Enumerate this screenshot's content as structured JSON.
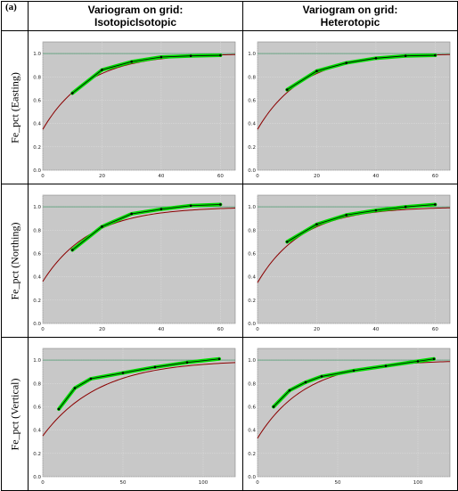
{
  "panel_label": "(a)",
  "headers": {
    "col1_line1": "Variogram on grid:",
    "col1_line2": "IsotopicIsotopic",
    "col2_line1": "Variogram on grid:",
    "col2_line2": "Heterotopic"
  },
  "rows": [
    {
      "label": "Fe_pct (Easting)"
    },
    {
      "label": "Fe_pct (Northing)"
    },
    {
      "label": "Fe_pct (Vertical)"
    }
  ],
  "colors": {
    "plot_background": "#c8c8c8",
    "model_line": "#8b0000",
    "experimental_band": "#00dd00",
    "experimental_line": "#000000",
    "sill_line": "#2e8b57"
  },
  "chart_data": [
    {
      "type": "line",
      "row": "Fe_pct (Easting)",
      "column": "IsotopicIsotopic",
      "xlim": [
        0,
        65
      ],
      "ylim": [
        0,
        1.1
      ],
      "xticks": [
        0,
        20,
        40,
        60
      ],
      "yticks": [
        0.0,
        0.2,
        0.4,
        0.6,
        0.8,
        1.0
      ],
      "sill": 1.0,
      "model": {
        "nugget": 0.35,
        "range_param": 15
      },
      "series": [
        {
          "x": [
            10,
            20,
            30,
            40,
            50,
            60
          ],
          "y": [
            0.66,
            0.86,
            0.93,
            0.97,
            0.98,
            0.985
          ]
        }
      ]
    },
    {
      "type": "line",
      "row": "Fe_pct (Easting)",
      "column": "Heterotopic",
      "xlim": [
        0,
        65
      ],
      "ylim": [
        0,
        1.1
      ],
      "xticks": [
        0,
        20,
        40,
        60
      ],
      "yticks": [
        0.0,
        0.2,
        0.4,
        0.6,
        0.8,
        1.0
      ],
      "sill": 1.0,
      "model": {
        "nugget": 0.35,
        "range_param": 15
      },
      "series": [
        {
          "x": [
            10,
            20,
            30,
            40,
            50,
            60
          ],
          "y": [
            0.69,
            0.85,
            0.92,
            0.96,
            0.98,
            0.985
          ]
        }
      ]
    },
    {
      "type": "line",
      "row": "Fe_pct (Northing)",
      "column": "IsotopicIsotopic",
      "xlim": [
        0,
        65
      ],
      "ylim": [
        0,
        1.1
      ],
      "xticks": [
        0,
        20,
        40,
        60
      ],
      "yticks": [
        0.0,
        0.2,
        0.4,
        0.6,
        0.8,
        1.0
      ],
      "sill": 1.0,
      "model": {
        "nugget": 0.36,
        "range_param": 16
      },
      "series": [
        {
          "x": [
            10,
            20,
            30,
            40,
            50,
            60
          ],
          "y": [
            0.63,
            0.83,
            0.94,
            0.98,
            1.01,
            1.02
          ]
        }
      ]
    },
    {
      "type": "line",
      "row": "Fe_pct (Northing)",
      "column": "Heterotopic",
      "xlim": [
        0,
        65
      ],
      "ylim": [
        0,
        1.1
      ],
      "xticks": [
        0,
        20,
        40,
        60
      ],
      "yticks": [
        0.0,
        0.2,
        0.4,
        0.6,
        0.8,
        1.0
      ],
      "sill": 1.0,
      "model": {
        "nugget": 0.35,
        "range_param": 15
      },
      "series": [
        {
          "x": [
            10,
            20,
            30,
            40,
            50,
            60
          ],
          "y": [
            0.7,
            0.85,
            0.93,
            0.97,
            1.0,
            1.02
          ]
        }
      ]
    },
    {
      "type": "line",
      "row": "Fe_pct (Vertical)",
      "column": "IsotopicIsotopic",
      "xlim": [
        0,
        120
      ],
      "ylim": [
        0,
        1.1
      ],
      "xticks": [
        0,
        50,
        100
      ],
      "yticks": [
        0.0,
        0.2,
        0.4,
        0.6,
        0.8,
        1.0
      ],
      "sill": 1.0,
      "model": {
        "nugget": 0.35,
        "range_param": 35
      },
      "series": [
        {
          "x": [
            10,
            20,
            30,
            50,
            70,
            90,
            110
          ],
          "y": [
            0.58,
            0.76,
            0.84,
            0.89,
            0.94,
            0.98,
            1.01
          ]
        }
      ]
    },
    {
      "type": "line",
      "row": "Fe_pct (Vertical)",
      "column": "Heterotopic",
      "xlim": [
        0,
        120
      ],
      "ylim": [
        0,
        1.1
      ],
      "xticks": [
        0,
        50,
        100
      ],
      "yticks": [
        0.0,
        0.2,
        0.4,
        0.6,
        0.8,
        1.0
      ],
      "sill": 1.0,
      "model": {
        "nugget": 0.33,
        "range_param": 30
      },
      "series": [
        {
          "x": [
            10,
            20,
            30,
            40,
            60,
            80,
            100,
            110
          ],
          "y": [
            0.6,
            0.74,
            0.81,
            0.86,
            0.91,
            0.95,
            0.99,
            1.01
          ]
        }
      ]
    }
  ]
}
